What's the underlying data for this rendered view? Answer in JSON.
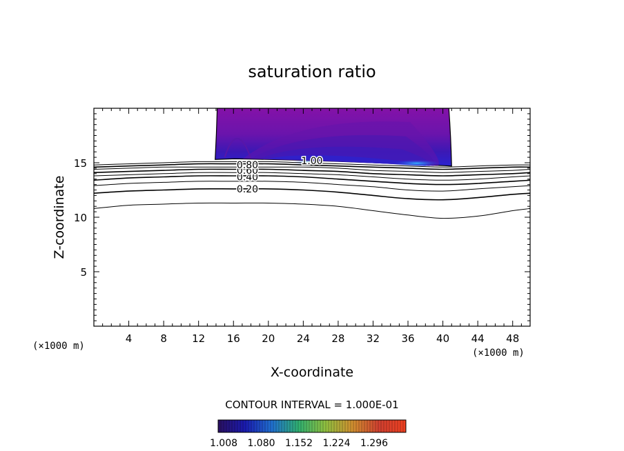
{
  "chart_data": {
    "type": "contour",
    "title": "saturation ratio",
    "xlabel": "X-coordinate",
    "ylabel": "Z-coordinate",
    "x_units_left": "(×1000 m)",
    "x_units_right": "(×1000 m)",
    "xlim": [
      0,
      50
    ],
    "ylim": [
      0,
      20
    ],
    "x_ticks": [
      4,
      8,
      12,
      16,
      20,
      24,
      28,
      32,
      36,
      40,
      44,
      48
    ],
    "y_ticks": [
      5,
      10,
      15
    ],
    "contour_interval_text": "CONTOUR INTERVAL = 1.000E-01",
    "contour_labels": [
      {
        "text": "0.20",
        "x": 17.6,
        "z": 12.6
      },
      {
        "text": "0.40",
        "x": 17.6,
        "z": 13.7
      },
      {
        "text": "0.60",
        "x": 17.6,
        "z": 14.3
      },
      {
        "text": "0.80",
        "x": 17.6,
        "z": 14.8
      },
      {
        "text": "1.00",
        "x": 25.0,
        "z": 15.2
      }
    ],
    "contour_lines": [
      {
        "level": 0.1,
        "x": [
          0,
          4,
          8,
          12,
          16,
          20,
          24,
          28,
          32,
          36,
          40,
          44,
          48,
          50
        ],
        "z": [
          10.8,
          11.1,
          11.2,
          11.3,
          11.3,
          11.3,
          11.2,
          11.0,
          10.6,
          10.2,
          9.9,
          10.1,
          10.6,
          10.8
        ]
      },
      {
        "level": 0.2,
        "x": [
          0,
          4,
          8,
          12,
          16,
          20,
          24,
          28,
          32,
          36,
          40,
          44,
          48,
          50
        ],
        "z": [
          12.2,
          12.4,
          12.5,
          12.6,
          12.6,
          12.6,
          12.5,
          12.3,
          12.0,
          11.7,
          11.6,
          11.8,
          12.1,
          12.2
        ]
      },
      {
        "level": 0.3,
        "x": [
          0,
          4,
          8,
          12,
          16,
          20,
          24,
          28,
          32,
          36,
          40,
          44,
          48,
          50
        ],
        "z": [
          12.9,
          13.1,
          13.2,
          13.3,
          13.3,
          13.3,
          13.2,
          13.0,
          12.8,
          12.5,
          12.4,
          12.6,
          12.8,
          12.9
        ]
      },
      {
        "level": 0.4,
        "x": [
          0,
          4,
          8,
          12,
          16,
          20,
          24,
          28,
          32,
          36,
          40,
          44,
          48,
          50
        ],
        "z": [
          13.4,
          13.6,
          13.7,
          13.8,
          13.8,
          13.8,
          13.7,
          13.5,
          13.3,
          13.1,
          13.0,
          13.1,
          13.3,
          13.4
        ]
      },
      {
        "level": 0.5,
        "x": [
          0,
          4,
          8,
          12,
          16,
          20,
          24,
          28,
          32,
          36,
          40,
          44,
          48,
          50
        ],
        "z": [
          13.8,
          13.9,
          14.0,
          14.1,
          14.1,
          14.1,
          14.0,
          13.9,
          13.7,
          13.5,
          13.4,
          13.5,
          13.7,
          13.8
        ]
      },
      {
        "level": 0.6,
        "x": [
          0,
          4,
          8,
          12,
          16,
          20,
          24,
          28,
          32,
          36,
          40,
          44,
          48,
          50
        ],
        "z": [
          14.1,
          14.2,
          14.3,
          14.4,
          14.4,
          14.4,
          14.3,
          14.2,
          14.0,
          13.9,
          13.8,
          13.9,
          14.0,
          14.1
        ]
      },
      {
        "level": 0.7,
        "x": [
          0,
          4,
          8,
          12,
          16,
          20,
          24,
          28,
          32,
          36,
          40,
          44,
          48,
          50
        ],
        "z": [
          14.4,
          14.5,
          14.6,
          14.6,
          14.6,
          14.6,
          14.6,
          14.5,
          14.3,
          14.2,
          14.1,
          14.2,
          14.3,
          14.4
        ]
      },
      {
        "level": 0.8,
        "x": [
          0,
          4,
          8,
          12,
          16,
          20,
          24,
          28,
          32,
          36,
          40,
          44,
          48,
          50
        ],
        "z": [
          14.6,
          14.7,
          14.8,
          14.9,
          14.9,
          14.9,
          14.8,
          14.7,
          14.6,
          14.5,
          14.4,
          14.5,
          14.6,
          14.6
        ]
      },
      {
        "level": 0.9,
        "x": [
          0,
          4,
          8,
          12,
          16,
          20,
          24,
          28,
          32,
          36,
          40,
          44,
          48,
          50
        ],
        "z": [
          14.8,
          14.9,
          15.0,
          15.1,
          15.1,
          15.1,
          15.0,
          14.9,
          14.8,
          14.7,
          14.6,
          14.7,
          14.8,
          14.8
        ]
      }
    ],
    "shaded_region": {
      "x_range": [
        13.9,
        41.0
      ],
      "z_bottom_left": 15.3,
      "z_bottom_right": 14.7,
      "z_top": 20,
      "description": "saturation ratio > 1.0"
    },
    "colorbar": {
      "tick_labels": [
        "1.008",
        "1.080",
        "1.152",
        "1.224",
        "1.296"
      ],
      "stops": [
        "#2a1060",
        "#1a1ab0",
        "#2070d0",
        "#30b070",
        "#90c040",
        "#d09030",
        "#d04030",
        "#f04020"
      ]
    },
    "colors": {
      "shading_base": "#7a10a8",
      "shading_mid": "#4a1aa8",
      "shading_low": "#2a22c8",
      "shading_peak": "#2a9cf0"
    }
  }
}
